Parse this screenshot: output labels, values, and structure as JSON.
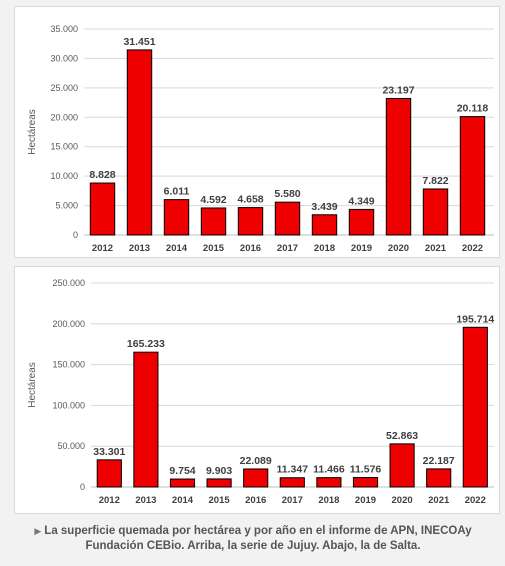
{
  "chart_data": [
    {
      "type": "bar",
      "categories": [
        "2012",
        "2013",
        "2014",
        "2015",
        "2016",
        "2017",
        "2018",
        "2019",
        "2020",
        "2021",
        "2022"
      ],
      "values": [
        8828,
        31451,
        6011,
        4592,
        4658,
        5580,
        3439,
        4349,
        23197,
        7822,
        20118
      ],
      "value_labels": [
        "8.828",
        "31.451",
        "6.011",
        "4.592",
        "4.658",
        "5.580",
        "3.439",
        "4.349",
        "23.197",
        "7.822",
        "20.118"
      ],
      "ylabel": "Hectáreas",
      "ylim": [
        0,
        35000
      ],
      "yticks": [
        0,
        5000,
        10000,
        15000,
        20000,
        25000,
        30000,
        35000
      ],
      "ytick_labels": [
        "0",
        "5.000",
        "10.000",
        "15.000",
        "20.000",
        "25.000",
        "30.000",
        "35.000"
      ],
      "grid": true,
      "bar_color": "#ee0000"
    },
    {
      "type": "bar",
      "categories": [
        "2012",
        "2013",
        "2014",
        "2015",
        "2016",
        "2017",
        "2018",
        "2019",
        "2020",
        "2021",
        "2022"
      ],
      "values": [
        33301,
        165233,
        9754,
        9903,
        22089,
        11347,
        11466,
        11576,
        52863,
        22187,
        195714
      ],
      "value_labels": [
        "33.301",
        "165.233",
        "9.754",
        "9.903",
        "22.089",
        "11.347",
        "11.466",
        "11.576",
        "52.863",
        "22.187",
        "195.714"
      ],
      "ylabel": "Hectáreas",
      "ylim": [
        0,
        250000
      ],
      "yticks": [
        0,
        50000,
        100000,
        150000,
        200000,
        250000
      ],
      "ytick_labels": [
        "0",
        "50.000",
        "100.000",
        "150.000",
        "200.000",
        "250.000"
      ],
      "grid": true,
      "bar_color": "#ee0000"
    }
  ],
  "caption": "La superficie quemada por hectárea y por año en el informe de APN, INECOAy Fundación CEBio. Arriba, la serie de Jujuy. Abajo, la de Salta.",
  "caption_icon": "triangle-right-icon"
}
